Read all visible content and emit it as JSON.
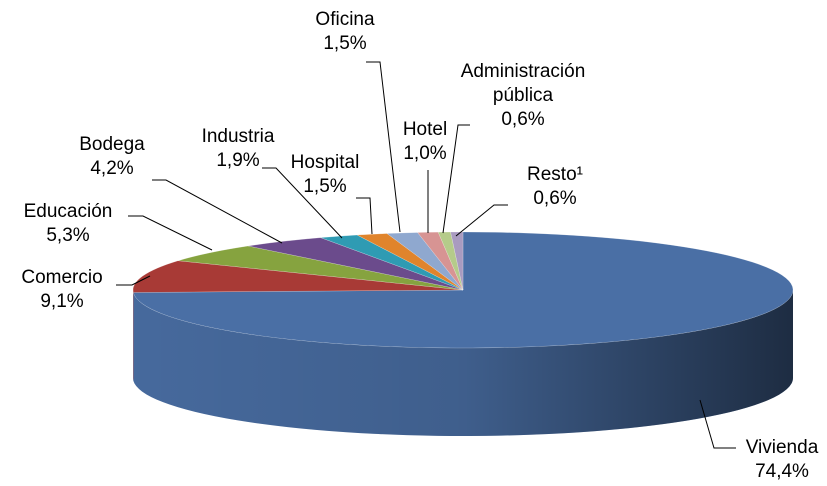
{
  "chart_data": {
    "type": "pie",
    "categories": [
      "Vivienda",
      "Comercio",
      "Educación",
      "Bodega",
      "Industria",
      "Hospital",
      "Oficina",
      "Hotel",
      "Administración pública",
      "Resto¹"
    ],
    "values": [
      74.4,
      9.1,
      5.3,
      4.2,
      1.9,
      1.5,
      1.5,
      1.0,
      0.6,
      0.6
    ],
    "value_labels": [
      "74,4%",
      "9,1%",
      "5,3%",
      "4,2%",
      "1,9%",
      "1,5%",
      "1,5%",
      "1,0%",
      "0,6%",
      "0,6%"
    ],
    "colors": [
      "#4a6fa5",
      "#a83a36",
      "#86a33f",
      "#6b4b8c",
      "#2f9bb3",
      "#e0842c",
      "#8fa8cf",
      "#d79493",
      "#b5cb8a",
      "#a99bc0"
    ]
  }
}
